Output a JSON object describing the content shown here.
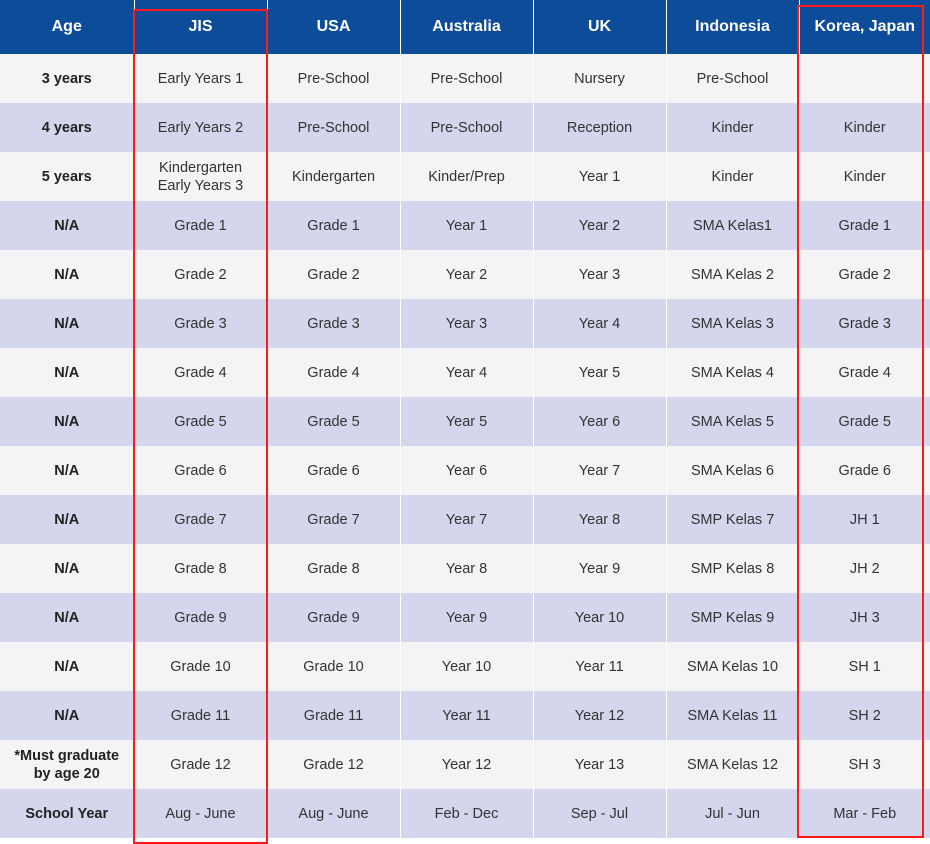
{
  "header": [
    "Age",
    "JIS",
    "USA",
    "Australia",
    "UK",
    "Indonesia",
    "Korea, Japan"
  ],
  "rows": [
    {
      "age": [
        "3 years"
      ],
      "cells": [
        [
          "Early Years 1"
        ],
        [
          "Pre-School"
        ],
        [
          "Pre-School"
        ],
        [
          "Nursery"
        ],
        [
          "Pre-School"
        ],
        [
          ""
        ]
      ]
    },
    {
      "age": [
        "4 years"
      ],
      "cells": [
        [
          "Early Years 2"
        ],
        [
          "Pre-School"
        ],
        [
          "Pre-School"
        ],
        [
          "Reception"
        ],
        [
          "Kinder"
        ],
        [
          "Kinder"
        ]
      ]
    },
    {
      "age": [
        "5 years"
      ],
      "cells": [
        [
          "Kindergarten",
          "Early Years 3"
        ],
        [
          "Kindergarten"
        ],
        [
          "Kinder/Prep"
        ],
        [
          "Year 1"
        ],
        [
          "Kinder"
        ],
        [
          "Kinder"
        ]
      ]
    },
    {
      "age": [
        "N/A"
      ],
      "cells": [
        [
          "Grade 1"
        ],
        [
          "Grade 1"
        ],
        [
          "Year 1"
        ],
        [
          "Year 2"
        ],
        [
          "SMA Kelas1"
        ],
        [
          "Grade 1"
        ]
      ]
    },
    {
      "age": [
        "N/A"
      ],
      "cells": [
        [
          "Grade 2"
        ],
        [
          "Grade 2"
        ],
        [
          "Year 2"
        ],
        [
          "Year 3"
        ],
        [
          "SMA Kelas 2"
        ],
        [
          "Grade 2"
        ]
      ]
    },
    {
      "age": [
        "N/A"
      ],
      "cells": [
        [
          "Grade 3"
        ],
        [
          "Grade 3"
        ],
        [
          "Year 3"
        ],
        [
          "Year 4"
        ],
        [
          "SMA Kelas 3"
        ],
        [
          "Grade 3"
        ]
      ]
    },
    {
      "age": [
        "N/A"
      ],
      "cells": [
        [
          "Grade 4"
        ],
        [
          "Grade 4"
        ],
        [
          "Year 4"
        ],
        [
          "Year 5"
        ],
        [
          "SMA Kelas 4"
        ],
        [
          "Grade 4"
        ]
      ]
    },
    {
      "age": [
        "N/A"
      ],
      "cells": [
        [
          "Grade 5"
        ],
        [
          "Grade 5"
        ],
        [
          "Year 5"
        ],
        [
          "Year 6"
        ],
        [
          "SMA Kelas 5"
        ],
        [
          "Grade 5"
        ]
      ]
    },
    {
      "age": [
        "N/A"
      ],
      "cells": [
        [
          "Grade 6"
        ],
        [
          "Grade 6"
        ],
        [
          "Year 6"
        ],
        [
          "Year 7"
        ],
        [
          "SMA Kelas 6"
        ],
        [
          "Grade 6"
        ]
      ]
    },
    {
      "age": [
        "N/A"
      ],
      "cells": [
        [
          "Grade 7"
        ],
        [
          "Grade 7"
        ],
        [
          "Year 7"
        ],
        [
          "Year 8"
        ],
        [
          "SMP Kelas 7"
        ],
        [
          "JH 1"
        ]
      ]
    },
    {
      "age": [
        "N/A"
      ],
      "cells": [
        [
          "Grade 8"
        ],
        [
          "Grade 8"
        ],
        [
          "Year 8"
        ],
        [
          "Year 9"
        ],
        [
          "SMP Kelas 8"
        ],
        [
          "JH 2"
        ]
      ]
    },
    {
      "age": [
        "N/A"
      ],
      "cells": [
        [
          "Grade 9"
        ],
        [
          "Grade 9"
        ],
        [
          "Year 9"
        ],
        [
          "Year 10"
        ],
        [
          "SMP Kelas 9"
        ],
        [
          "JH 3"
        ]
      ]
    },
    {
      "age": [
        "N/A"
      ],
      "cells": [
        [
          "Grade 10"
        ],
        [
          "Grade 10"
        ],
        [
          "Year 10"
        ],
        [
          "Year 11"
        ],
        [
          "SMA Kelas 10"
        ],
        [
          "SH 1"
        ]
      ]
    },
    {
      "age": [
        "N/A"
      ],
      "cells": [
        [
          "Grade 11"
        ],
        [
          "Grade 11"
        ],
        [
          "Year 11"
        ],
        [
          "Year 12"
        ],
        [
          "SMA Kelas 11"
        ],
        [
          "SH 2"
        ]
      ]
    },
    {
      "age": [
        "*Must graduate",
        "by age 20"
      ],
      "cells": [
        [
          "Grade 12"
        ],
        [
          "Grade 12"
        ],
        [
          "Year 12"
        ],
        [
          "Year 13"
        ],
        [
          "SMA Kelas 12"
        ],
        [
          "SH 3"
        ]
      ]
    },
    {
      "age": [
        "School Year"
      ],
      "cells": [
        [
          "Aug - June"
        ],
        [
          "Aug - June"
        ],
        [
          "Feb - Dec"
        ],
        [
          "Sep - Jul"
        ],
        [
          "Jul - Jun"
        ],
        [
          "Mar - Feb"
        ]
      ]
    }
  ],
  "colors": {
    "header_bg": "#0d4c98",
    "row_light": "#f4f4f7",
    "row_shaded": "#d3d6ec",
    "highlight": "#ff1a1a"
  }
}
